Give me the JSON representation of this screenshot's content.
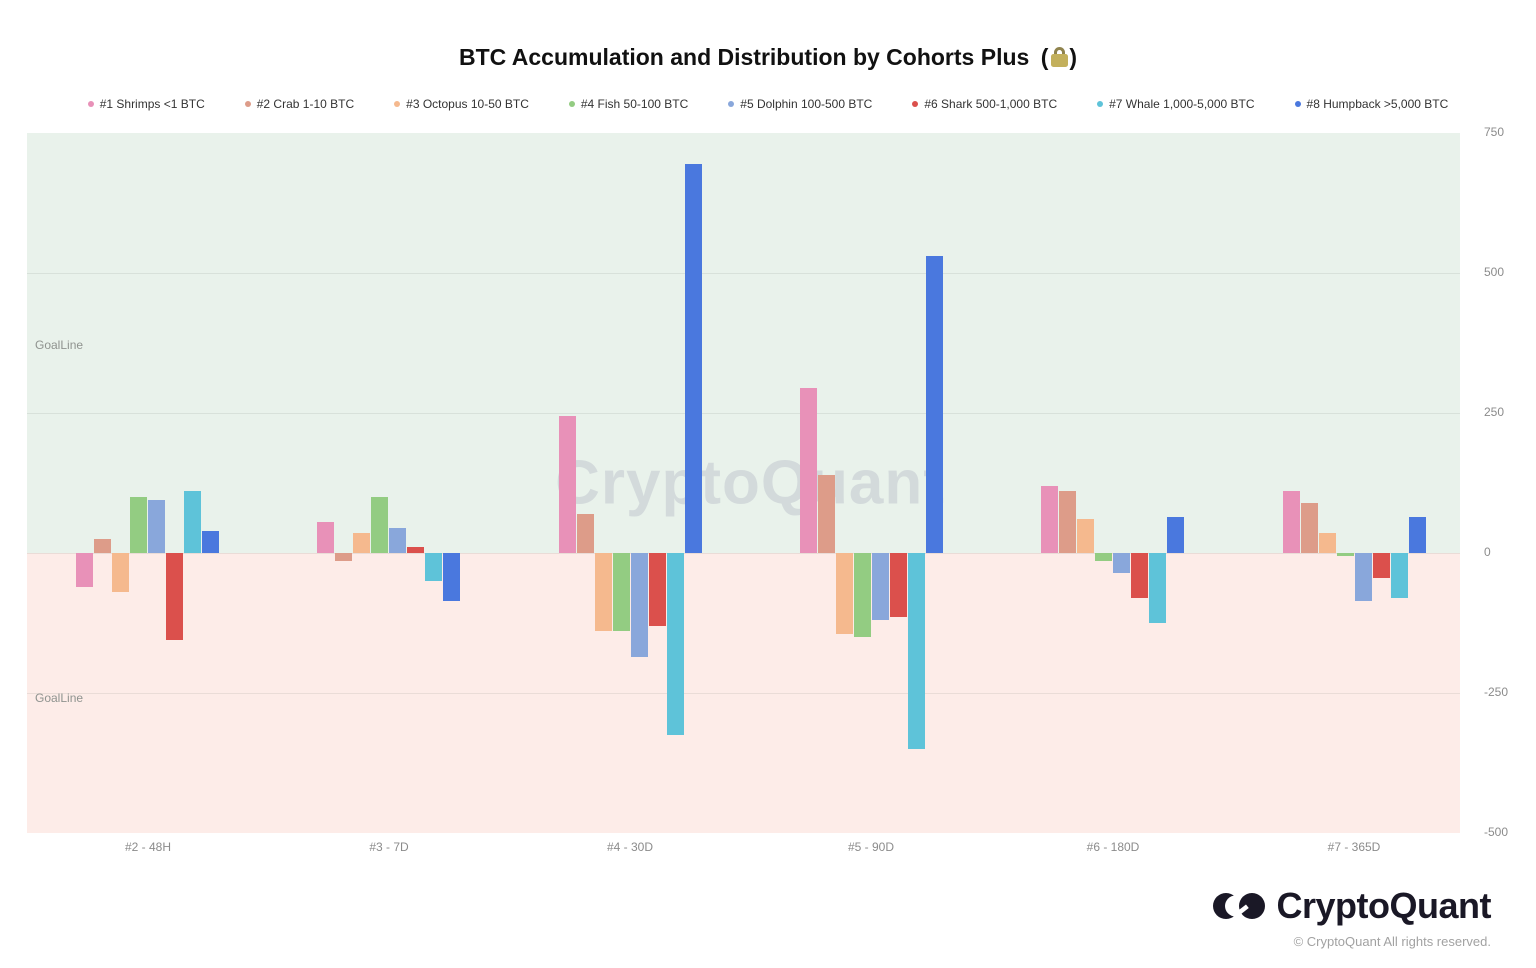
{
  "header": {
    "title": "BTC Accumulation and Distribution by Cohorts Plus",
    "title_paren_open": "(",
    "title_paren_close": ")",
    "title_lock_icon": "lock-icon"
  },
  "chart_data": {
    "type": "bar",
    "title": "BTC Accumulation and Distribution by Cohorts Plus (🔒)",
    "categories": [
      "#2 - 48H",
      "#3 - 7D",
      "#4 - 30D",
      "#5 - 90D",
      "#6 - 180D",
      "#7 - 365D"
    ],
    "series": [
      {
        "name": "#1 Shrimps <1 BTC",
        "color": "#e891b8",
        "values": [
          -60,
          55,
          245,
          295,
          120,
          110
        ]
      },
      {
        "name": "#2 Crab 1-10 BTC",
        "color": "#dd9c89",
        "values": [
          25,
          -15,
          70,
          140,
          110,
          90
        ]
      },
      {
        "name": "#3 Octopus 10-50 BTC",
        "color": "#f5b98e",
        "values": [
          -70,
          35,
          -140,
          -145,
          60,
          35
        ]
      },
      {
        "name": "#4 Fish 50-100 BTC",
        "color": "#93cc82",
        "values": [
          100,
          100,
          -140,
          -150,
          -15,
          -5
        ]
      },
      {
        "name": "#5 Dolphin 100-500 BTC",
        "color": "#89a7db",
        "values": [
          95,
          45,
          -185,
          -120,
          -35,
          -85
        ]
      },
      {
        "name": "#6 Shark 500-1,000 BTC",
        "color": "#db504c",
        "values": [
          -155,
          10,
          -130,
          -115,
          -80,
          -45
        ]
      },
      {
        "name": "#7 Whale 1,000-5,000 BTC",
        "color": "#5ec3d9",
        "values": [
          110,
          -50,
          -325,
          -350,
          -125,
          -80
        ]
      },
      {
        "name": "#8 Humpback >5,000 BTC",
        "color": "#4a78de",
        "values": [
          40,
          -85,
          695,
          530,
          65,
          65
        ]
      }
    ],
    "ylim": [
      -500,
      750
    ],
    "yticks": [
      750,
      500,
      250,
      0,
      -250,
      -500
    ],
    "gridline_ticks": [
      500,
      250,
      0,
      -250
    ],
    "goal_line_labels": [
      "GoalLine",
      "GoalLine"
    ],
    "watermark": "CryptoQuant",
    "legend_position": "top",
    "positive_bg": "#e9f2eb",
    "negative_bg": "#fdece8"
  },
  "footer": {
    "brand": "CryptoQuant",
    "copyright": "© CryptoQuant All rights reserved.",
    "logo_icon": "cryptoquant-logo-icon"
  }
}
